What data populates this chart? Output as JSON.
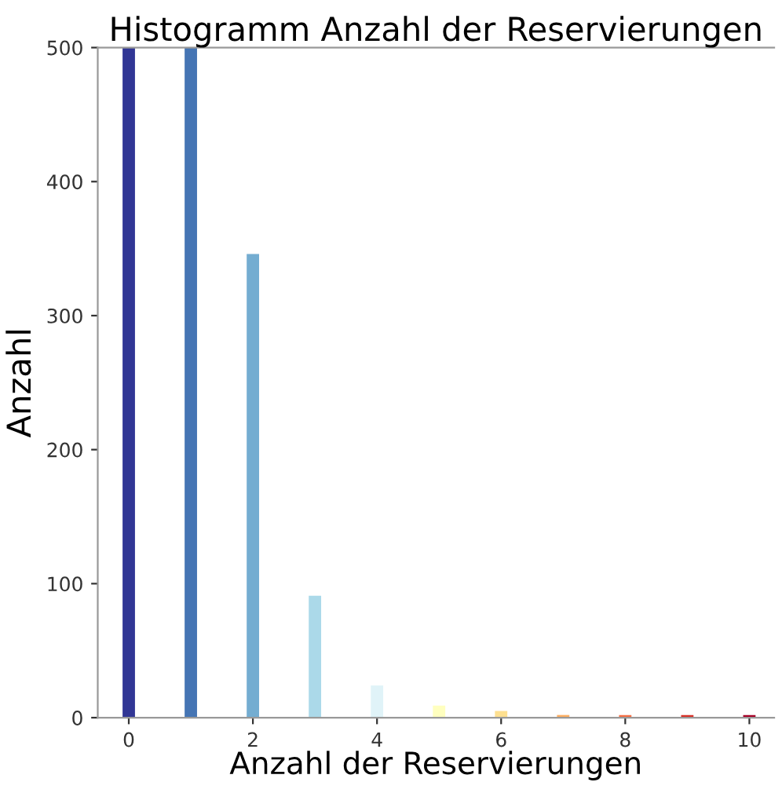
{
  "chart_data": {
    "type": "bar",
    "title": "Histogramm Anzahl der Reservierungen",
    "xlabel": "Anzahl der Reservierungen",
    "ylabel": "Anzahl",
    "x": [
      0,
      1,
      2,
      3,
      4,
      5,
      6,
      7,
      8,
      9,
      10
    ],
    "values": [
      500,
      500,
      346,
      91,
      24,
      9,
      5,
      2,
      2,
      2,
      2
    ],
    "colors": [
      "#313695",
      "#4575b4",
      "#74add1",
      "#abd9e9",
      "#e0f3f8",
      "#ffffbf",
      "#fee090",
      "#fdae61",
      "#f46d43",
      "#d73027",
      "#a50026"
    ],
    "xlim": [
      -0.5,
      10.4
    ],
    "xticks": [
      0,
      2,
      4,
      6,
      8,
      10
    ],
    "ylim": [
      0,
      500
    ],
    "yticks": [
      0,
      100,
      200,
      300,
      400,
      500
    ],
    "grid": false,
    "legend": false
  }
}
